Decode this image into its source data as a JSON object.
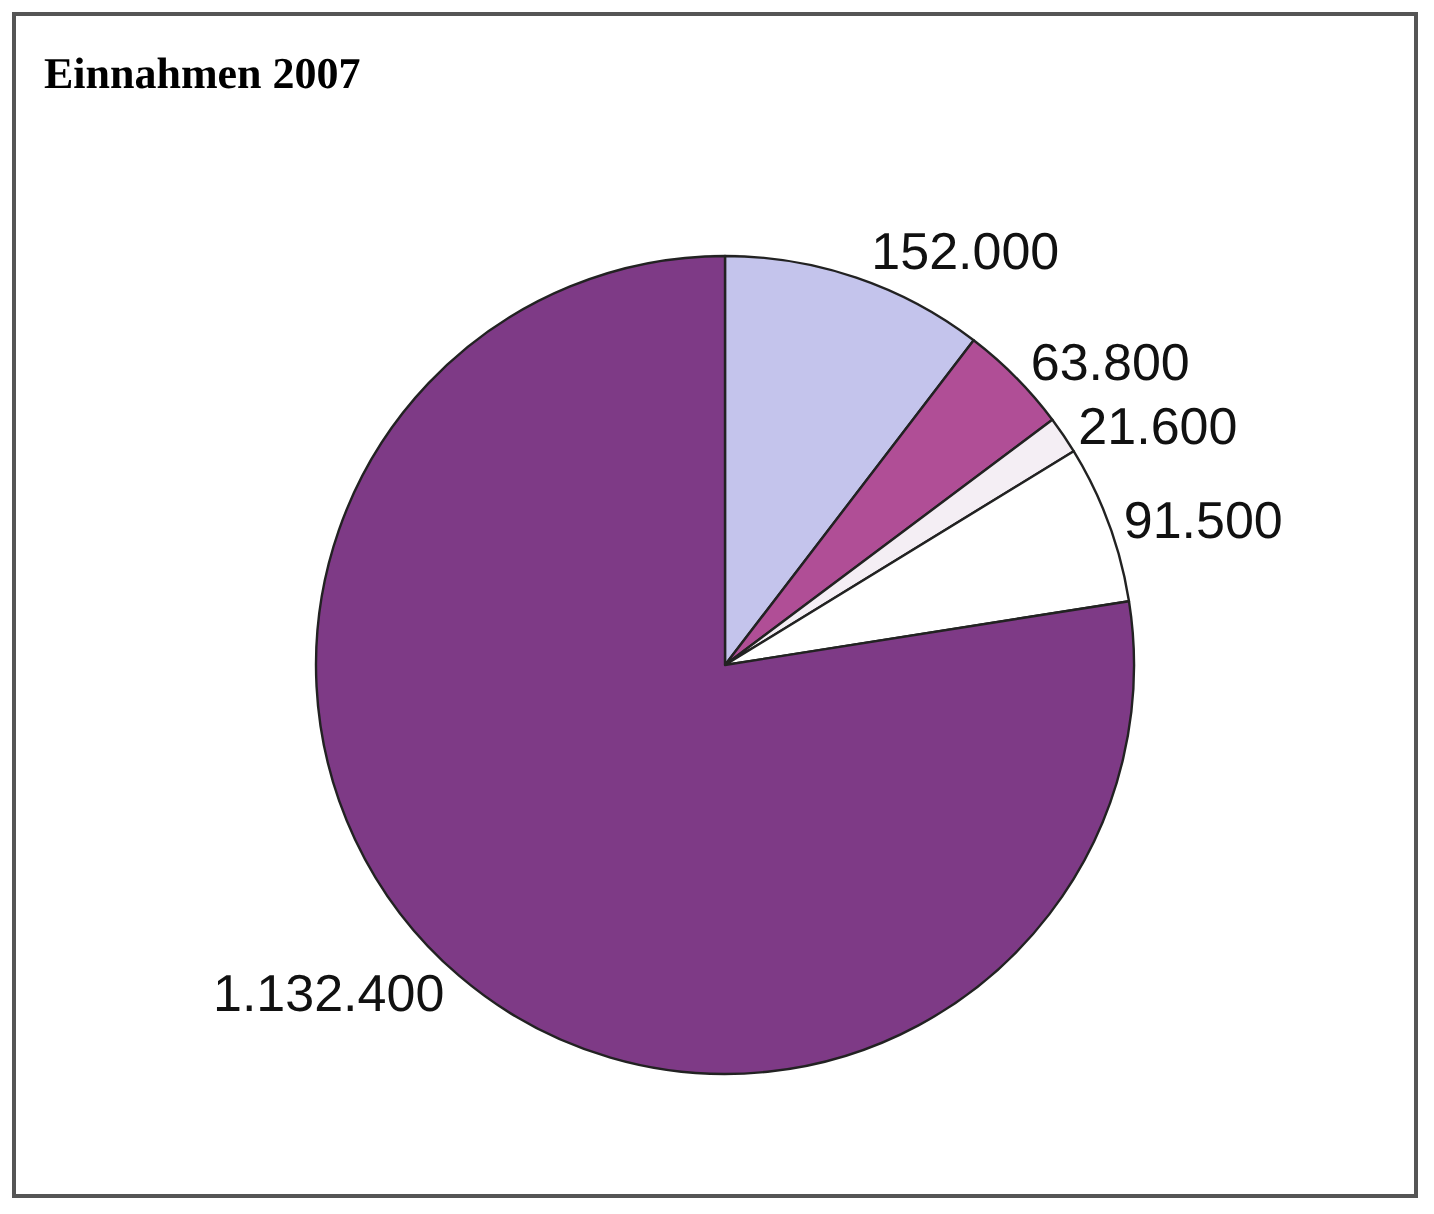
{
  "chart_data": {
    "type": "pie",
    "title": "Einnahmen 2007",
    "categories": [
      null,
      null,
      null,
      null,
      null
    ],
    "values": [
      152000,
      63800,
      21600,
      91500,
      1132400
    ],
    "value_labels": [
      "152.000",
      "63.800",
      "21.600",
      "91.500",
      "1.132.400"
    ],
    "colors": [
      "#c4c4ec",
      "#b04e96",
      "#f4eef4",
      "#ffffff",
      "#7e3a86"
    ],
    "legend": false
  }
}
